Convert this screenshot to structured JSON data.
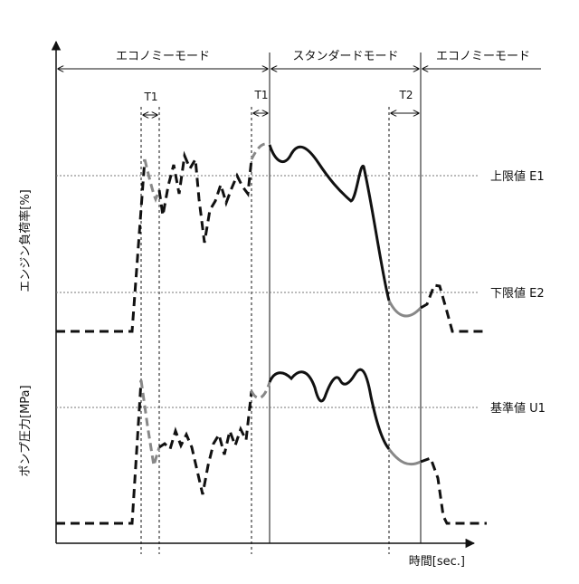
{
  "modes": [
    {
      "label": "エコノミーモード"
    },
    {
      "label": "スタンダードモード"
    },
    {
      "label": "エコノミーモード"
    }
  ],
  "intervals": [
    {
      "label": "T1"
    },
    {
      "label": "T1"
    },
    {
      "label": "T2"
    }
  ],
  "reference_lines": [
    {
      "label": "上限値 E1"
    },
    {
      "label": "下限値 E2"
    },
    {
      "label": "基準値 U1"
    }
  ],
  "axes": {
    "y_engine_load": "エンジン負荷率[%]",
    "y_pump_pressure": "ポンプ圧力[MPa]",
    "x_time": "時間[sec.]"
  },
  "colors": {
    "line": "#111111",
    "transition": "#888888",
    "reference": "#777777"
  }
}
